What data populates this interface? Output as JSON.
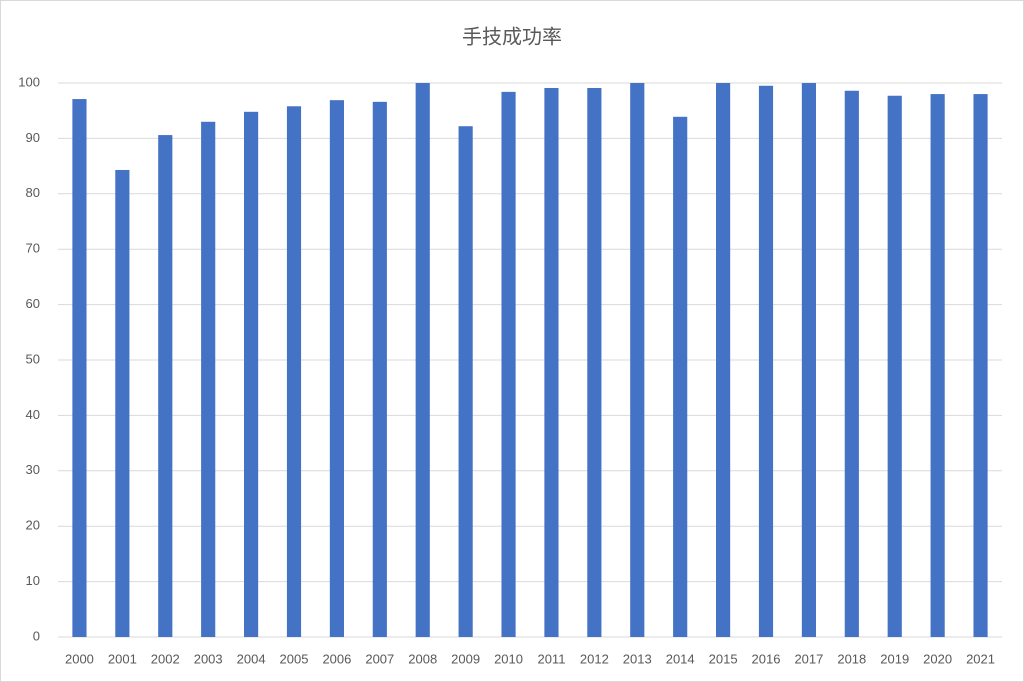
{
  "chart_data": {
    "type": "bar",
    "title": "手技成功率",
    "categories": [
      "2000",
      "2001",
      "2002",
      "2003",
      "2004",
      "2005",
      "2006",
      "2007",
      "2008",
      "2009",
      "2010",
      "2011",
      "2012",
      "2013",
      "2014",
      "2015",
      "2016",
      "2017",
      "2018",
      "2019",
      "2020",
      "2021"
    ],
    "values": [
      97.1,
      84.3,
      90.6,
      93.0,
      94.8,
      95.8,
      96.9,
      96.6,
      100,
      92.2,
      98.4,
      99.1,
      99.1,
      100,
      93.9,
      100,
      99.5,
      100,
      98.6,
      97.7,
      98.0,
      98.0
    ],
    "color": "#4472c4",
    "ylim": [
      0,
      100
    ],
    "yticks": [
      0,
      10,
      20,
      30,
      40,
      50,
      60,
      70,
      80,
      90,
      100
    ],
    "grid": true
  }
}
